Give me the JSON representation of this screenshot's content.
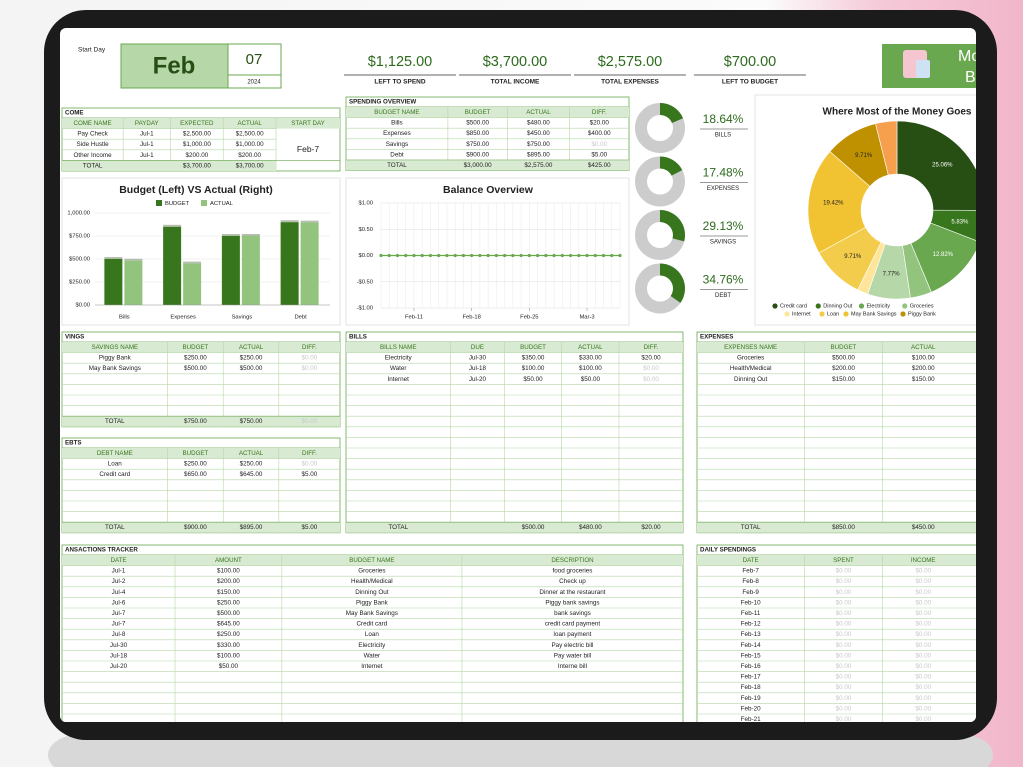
{
  "header": {
    "start_day_label": "Start Day",
    "month": "Feb",
    "day": "07",
    "year": "2024",
    "logo_text": [
      "Mo",
      "B"
    ],
    "stats": [
      {
        "value": "$1,125.00",
        "label": "LEFT TO SPEND"
      },
      {
        "value": "$3,700.00",
        "label": "TOTAL INCOME"
      },
      {
        "value": "$2,575.00",
        "label": "TOTAL EXPENSES"
      },
      {
        "value": "$700.00",
        "label": "LEFT TO BUDGET"
      }
    ]
  },
  "income": {
    "title": "COME",
    "columns": [
      "COME NAME",
      "PAYDAY",
      "EXPECTED",
      "ACTUAL",
      "START DAY"
    ],
    "rows": [
      [
        "Pay Check",
        "Jul-1",
        "$2,500.00",
        "$2,500.00"
      ],
      [
        "Side Hustle",
        "Jul-1",
        "$1,000.00",
        "$1,000.00"
      ],
      [
        "Other Income",
        "Jul-1",
        "$200.00",
        "$200.00"
      ]
    ],
    "total": [
      "TOTAL",
      null,
      "$3,700.00",
      "$3,700.00"
    ],
    "start_day": "Feb-7"
  },
  "spending_overview": {
    "title": "SPENDING OVERVIEW",
    "columns": [
      "BUDGET NAME",
      "BUDGET",
      "ACTUAL",
      "DIFF."
    ],
    "rows": [
      [
        "Bills",
        "$500.00",
        "$480.00",
        "$20.00"
      ],
      [
        "Expenses",
        "$850.00",
        "$450.00",
        "$400.00"
      ],
      [
        "Savings",
        "$750.00",
        "$750.00",
        "$0.00"
      ],
      [
        "Debt",
        "$900.00",
        "$895.00",
        "$5.00"
      ]
    ],
    "total": [
      "TOTAL",
      "$3,000.00",
      "$2,575.00",
      "$425.00"
    ]
  },
  "donuts": {
    "values": [
      18.64,
      17.48,
      29.13,
      34.76
    ],
    "value_labels": [
      "18.64%",
      "17.48%",
      "29.13%",
      "34.76%"
    ],
    "labels": [
      "BILLS",
      "EXPENSES",
      "SAVINGS",
      "DEBT"
    ]
  },
  "money_chart": {
    "type": "pie",
    "title": "Where Most of the Money Goes",
    "categories": [
      "Credit card",
      "Dinning Out",
      "Electricity",
      "Groceries",
      null,
      "Internet",
      "Loan",
      "May Bank Savings",
      "Piggy Bank",
      null
    ],
    "values": [
      25.06,
      5.83,
      12.82,
      3.88,
      7.77,
      1.94,
      9.71,
      19.42,
      9.71,
      3.88
    ],
    "value_labels": [
      "25.06%",
      "5.83%",
      "12.82%",
      null,
      "7.77%",
      null,
      "9.71%",
      "19.42%",
      "9.71%",
      null
    ],
    "colors": [
      "#274e13",
      "#38761d",
      "#6aa84f",
      "#93c47d",
      "#b6d7a8",
      "#ffe599",
      "#f4cc4c",
      "#f1c232",
      "#bf9000",
      "#f6a04d"
    ]
  },
  "budget_chart": {
    "type": "bar",
    "title": "Budget (Left) VS Actual (Right)",
    "categories": [
      "Bills",
      "Expenses",
      "Savings",
      "Debt"
    ],
    "series": [
      {
        "name": "BUDGET",
        "color": "#38761d",
        "values": [
          500,
          850,
          750,
          900
        ]
      },
      {
        "name": "ACTUAL",
        "color": "#93c47d",
        "values": [
          480,
          450,
          750,
          895
        ]
      }
    ],
    "ylim": [
      0,
      1000
    ],
    "yticks": [
      {
        "value": 0,
        "label": "$0.00"
      },
      {
        "value": 250,
        "label": "$250.00"
      },
      {
        "value": 500,
        "label": "$500.00"
      },
      {
        "value": 750,
        "label": "$750.00"
      },
      {
        "value": 1000,
        "label": "1,000.00"
      }
    ],
    "grid": true
  },
  "balance_chart": {
    "type": "line",
    "title": "Balance Overview",
    "color": "#6aa84f",
    "x": [
      7,
      8,
      9,
      10,
      11,
      12,
      13,
      14,
      15,
      16,
      17,
      18,
      19,
      20,
      21,
      22,
      23,
      24,
      25,
      26,
      27,
      28,
      29,
      30,
      31,
      32,
      33,
      34,
      35,
      36
    ],
    "values": [
      0,
      0,
      0,
      0,
      0,
      0,
      0,
      0,
      0,
      0,
      0,
      0,
      0,
      0,
      0,
      0,
      0,
      0,
      0,
      0,
      0,
      0,
      0,
      0,
      0,
      0,
      0,
      0,
      0,
      0
    ],
    "xlim": [
      7,
      36
    ],
    "xticks": [
      {
        "value": 11,
        "label": "Feb-11"
      },
      {
        "value": 18,
        "label": "Feb-18"
      },
      {
        "value": 25,
        "label": "Feb-25"
      },
      {
        "value": 32,
        "label": "Mar-3"
      }
    ],
    "ylim": [
      -1,
      1
    ],
    "yticks": [
      {
        "value": 1,
        "label": "$1.00"
      },
      {
        "value": 0.5,
        "label": "$0.50"
      },
      {
        "value": 0,
        "label": "$0.00"
      },
      {
        "value": -0.5,
        "label": "-$0.50"
      },
      {
        "value": -1,
        "label": "-$1.00"
      }
    ],
    "grid": true
  },
  "savings": {
    "title": "VINGS",
    "columns": [
      "SAVINGS NAME",
      "BUDGET",
      "ACTUAL",
      "DIFF."
    ],
    "rows": [
      [
        "Piggy Bank",
        "$250.00",
        "$250.00",
        "$0.00"
      ],
      [
        "May Bank Savings",
        "$500.00",
        "$500.00",
        "$0.00"
      ]
    ],
    "total": [
      "TOTAL",
      "$750.00",
      "$750.00",
      "$0.00"
    ]
  },
  "debts": {
    "title": "EBTS",
    "columns": [
      "DEBT NAME",
      "BUDGET",
      "ACTUAL",
      "DIFF."
    ],
    "rows": [
      [
        "Loan",
        "$250.00",
        "$250.00",
        "$0.00"
      ],
      [
        "Credit card",
        "$650.00",
        "$645.00",
        "$5.00"
      ]
    ],
    "total": [
      "TOTAL",
      "$900.00",
      "$895.00",
      "$5.00"
    ]
  },
  "bills": {
    "title": "BILLS",
    "columns": [
      "BILLS NAME",
      "DUE",
      "BUDGET",
      "ACTUAL",
      "DIFF."
    ],
    "rows": [
      [
        "Electricity",
        "Jul-30",
        "$350.00",
        "$330.00",
        "$20.00"
      ],
      [
        "Water",
        "Jul-18",
        "$100.00",
        "$100.00",
        "$0.00"
      ],
      [
        "Internet",
        "Jul-20",
        "$50.00",
        "$50.00",
        "$0.00"
      ]
    ],
    "total": [
      "TOTAL",
      null,
      "$500.00",
      "$480.00",
      "$20.00"
    ]
  },
  "expenses": {
    "title": "EXPENSES",
    "columns": [
      "EXPENSES NAME",
      "BUDGET",
      "ACTUAL"
    ],
    "rows": [
      [
        "Groceries",
        "$500.00",
        "$100.00"
      ],
      [
        "Health/Medical",
        "$200.00",
        "$200.00"
      ],
      [
        "Dinning Out",
        "$150.00",
        "$150.00"
      ]
    ],
    "total": [
      "TOTAL",
      "$850.00",
      "$450.00"
    ]
  },
  "transactions": {
    "title": "ANSACTIONS TRACKER",
    "columns": [
      "DATE",
      "AMOUNT",
      "BUDGET NAME",
      "DESCRIPTION"
    ],
    "rows": [
      [
        "Jul-1",
        "$100.00",
        "Groceries",
        "food groceries"
      ],
      [
        "Jul-2",
        "$200.00",
        "Health/Medical",
        "Check up"
      ],
      [
        "Jul-4",
        "$150.00",
        "Dinning Out",
        "Dinner at the restaurant"
      ],
      [
        "Jul-6",
        "$250.00",
        "Piggy Bank",
        "Piggy bank savings"
      ],
      [
        "Jul-7",
        "$500.00",
        "May Bank Savings",
        "bank savings"
      ],
      [
        "Jul-7",
        "$645.00",
        "Credit card",
        "credit card payment"
      ],
      [
        "Jul-8",
        "$250.00",
        "Loan",
        "loan payment"
      ],
      [
        "Jul-30",
        "$330.00",
        "Electricity",
        "Pay electric bill"
      ],
      [
        "Jul-18",
        "$100.00",
        "Water",
        "Pay water bill"
      ],
      [
        "Jul-20",
        "$50.00",
        "Internet",
        "Interne bill"
      ]
    ]
  },
  "daily_spendings": {
    "title": "DAILY SPENDINGS",
    "columns": [
      "DATE",
      "SPENT",
      "INCOME"
    ],
    "rows": [
      [
        "Feb-7",
        "$0.00",
        "$0.00"
      ],
      [
        "Feb-8",
        "$0.00",
        "$0.00"
      ],
      [
        "Feb-9",
        "$0.00",
        "$0.00"
      ],
      [
        "Feb-10",
        "$0.00",
        "$0.00"
      ],
      [
        "Feb-11",
        "$0.00",
        "$0.00"
      ],
      [
        "Feb-12",
        "$0.00",
        "$0.00"
      ],
      [
        "Feb-13",
        "$0.00",
        "$0.00"
      ],
      [
        "Feb-14",
        "$0.00",
        "$0.00"
      ],
      [
        "Feb-15",
        "$0.00",
        "$0.00"
      ],
      [
        "Feb-16",
        "$0.00",
        "$0.00"
      ],
      [
        "Feb-17",
        "$0.00",
        "$0.00"
      ],
      [
        "Feb-18",
        "$0.00",
        "$0.00"
      ],
      [
        "Feb-19",
        "$0.00",
        "$0.00"
      ],
      [
        "Feb-20",
        "$0.00",
        "$0.00"
      ],
      [
        "Feb-21",
        "$0.00",
        "$0.00"
      ]
    ]
  }
}
